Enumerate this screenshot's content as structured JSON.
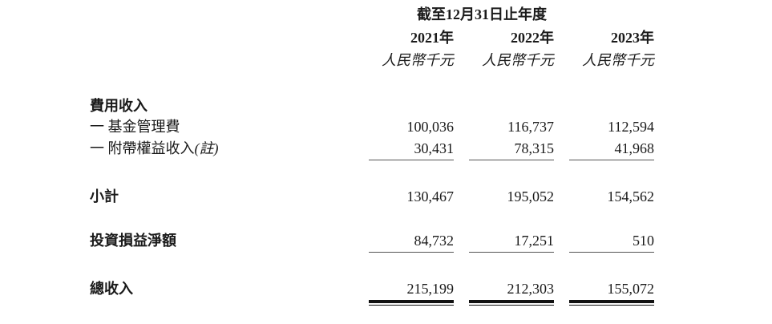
{
  "header": {
    "period": "截至12月31日止年度",
    "years": [
      "2021年",
      "2022年",
      "2023年"
    ],
    "units": [
      "人民幣千元",
      "人民幣千元",
      "人民幣千元"
    ]
  },
  "rows": {
    "fee_income": {
      "label": "費用收入"
    },
    "management_fee": {
      "label": "一 基金管理費",
      "values": [
        "100,036",
        "116,737",
        "112,594"
      ]
    },
    "carried_interest": {
      "label": "一 附帶權益收入",
      "note": "(註)",
      "values": [
        "30,431",
        "78,315",
        "41,968"
      ]
    },
    "subtotal": {
      "label": "小計",
      "values": [
        "130,467",
        "195,052",
        "154,562"
      ]
    },
    "net_investment": {
      "label": "投資損益淨額",
      "values": [
        "84,732",
        "17,251",
        "510"
      ]
    },
    "total_revenue": {
      "label": "總收入",
      "values": [
        "215,199",
        "212,303",
        "155,072"
      ]
    }
  }
}
